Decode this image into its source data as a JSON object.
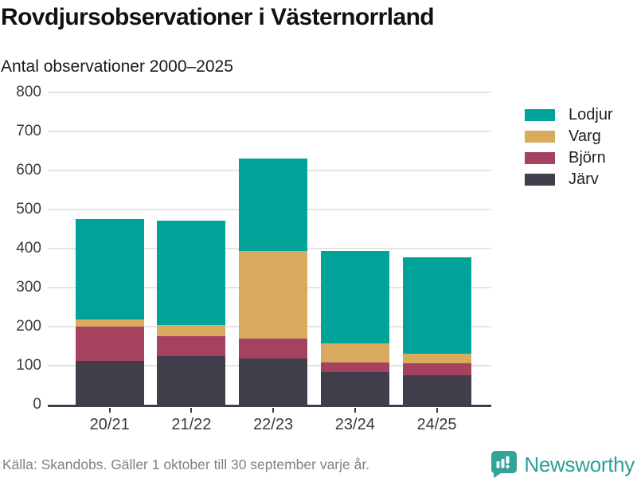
{
  "header": {
    "title": "Rovdjursobservationer i Västernorrland",
    "subtitle": "Antal observationer 2000–2025"
  },
  "chart_data": {
    "type": "bar",
    "stacked": true,
    "title": "Rovdjursobservationer i Västernorrland",
    "subtitle": "Antal observationer 2000–2025",
    "categories": [
      "20/21",
      "21/22",
      "22/23",
      "23/24",
      "24/25"
    ],
    "series": [
      {
        "name": "Järv",
        "color": "#413d4b",
        "values": [
          113,
          125,
          118,
          83,
          76
        ]
      },
      {
        "name": "Björn",
        "color": "#a44260",
        "values": [
          87,
          51,
          52,
          26,
          30
        ]
      },
      {
        "name": "Varg",
        "color": "#d9ab5e",
        "values": [
          18,
          29,
          224,
          49,
          24
        ]
      },
      {
        "name": "Lodjur",
        "color": "#00a39a",
        "values": [
          257,
          267,
          236,
          236,
          248
        ]
      }
    ],
    "totals": [
      475,
      472,
      630,
      394,
      378
    ],
    "xlabel": "",
    "ylabel": "",
    "ylim": [
      0,
      800
    ],
    "yticks": [
      0,
      100,
      200,
      300,
      400,
      500,
      600,
      700,
      800
    ],
    "grid": true,
    "legend_position": "right",
    "legend_order": [
      "Lodjur",
      "Varg",
      "Björn",
      "Järv"
    ]
  },
  "footer": {
    "source": "Källa: Skandobs. Gäller 1 oktober till 30 september varje år.",
    "brand": "Newsworthy"
  },
  "colors": {
    "brand_teal": "#34a399",
    "axis": "#3f3b4b",
    "gridline": "#e4e4e4",
    "text": "#111111",
    "muted": "#807e88"
  }
}
